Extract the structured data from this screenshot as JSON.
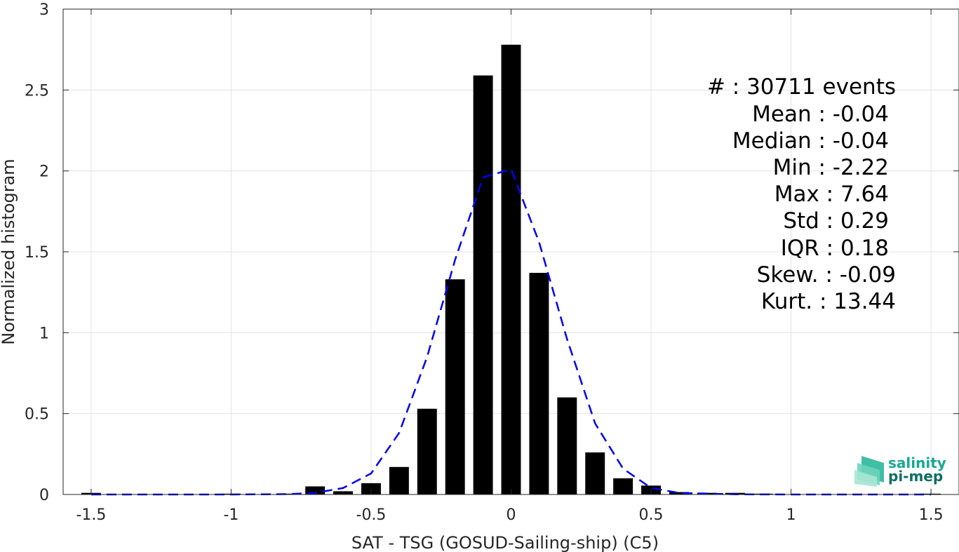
{
  "chart_data": {
    "type": "bar",
    "title": "",
    "xlabel": "SAT - TSG (GOSUD-Sailing-ship) (C5)",
    "ylabel": "Normalized histogram",
    "xlim": [
      -1.6,
      1.6
    ],
    "ylim": [
      0,
      3
    ],
    "grid": true,
    "x_ticks": [
      -1.5,
      -1,
      -0.5,
      0,
      0.5,
      1,
      1.5
    ],
    "x_tick_labels": [
      "-1.5",
      "-1",
      "-0.5",
      "0",
      "0.5",
      "1",
      "1.5"
    ],
    "y_ticks": [
      0,
      0.5,
      1,
      1.5,
      2,
      2.5,
      3
    ],
    "y_tick_labels": [
      "0",
      "0.5",
      "1",
      "1.5",
      "2",
      "2.5",
      "3"
    ],
    "bar_width": 0.07,
    "bar_color": "#000000",
    "series": [
      {
        "kind": "bar",
        "x": [
          -1.5,
          -1.0,
          -0.8,
          -0.7,
          -0.6,
          -0.5,
          -0.4,
          -0.3,
          -0.2,
          -0.1,
          0.0,
          0.1,
          0.2,
          0.3,
          0.4,
          0.5,
          0.6,
          0.7,
          0.8,
          0.9,
          1.5
        ],
        "values": [
          0.01,
          0.005,
          0.005,
          0.05,
          0.02,
          0.07,
          0.17,
          0.53,
          1.33,
          2.59,
          2.78,
          1.37,
          0.6,
          0.26,
          0.1,
          0.055,
          0.015,
          0.01,
          0.01,
          0.005,
          0.005
        ]
      },
      {
        "kind": "line",
        "style": "dashed",
        "color": "#0000ee",
        "x": [
          -1.5,
          -1.2,
          -1.0,
          -0.8,
          -0.7,
          -0.6,
          -0.5,
          -0.4,
          -0.3,
          -0.2,
          -0.1,
          0.0,
          0.1,
          0.2,
          0.3,
          0.4,
          0.5,
          0.6,
          0.8,
          1.0,
          1.2,
          1.5
        ],
        "values": [
          0.0,
          0.0,
          0.0,
          0.002,
          0.01,
          0.04,
          0.13,
          0.38,
          0.85,
          1.45,
          1.96,
          2.01,
          1.56,
          0.96,
          0.44,
          0.16,
          0.04,
          0.01,
          0.001,
          0.0,
          0.0,
          0.0
        ]
      }
    ],
    "annotations": [
      "#  : 30711 events",
      "Mean : -0.04",
      "Median : -0.04",
      "Min : -2.22",
      "Max : 7.64",
      "Std : 0.29",
      "IQR : 0.18",
      "Skew. : -0.09",
      "Kurt. : 13.44"
    ]
  },
  "logo": {
    "line1": "salinity",
    "line2": "pi-mep"
  }
}
